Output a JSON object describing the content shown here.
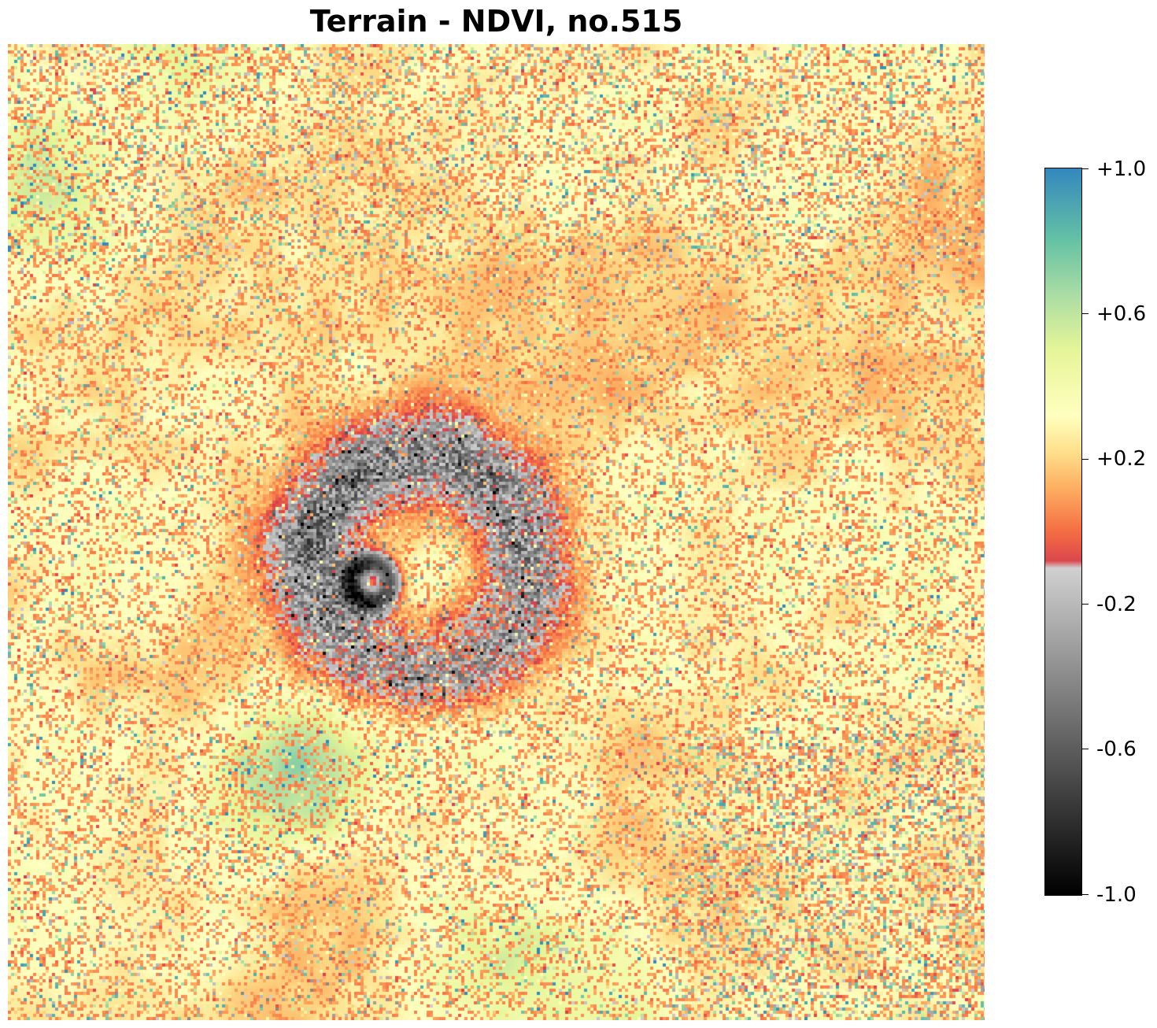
{
  "title": "Terrain - NDVI, no.515",
  "chart_data": {
    "type": "heatmap",
    "title": "Terrain - NDVI, no.515",
    "xlabel": "",
    "ylabel": "",
    "axes_visible": false,
    "grid": false,
    "description_value": "NDVI",
    "colorbar": {
      "position": "right",
      "vmin": -1.0,
      "vmax": 1.0,
      "ticks": [
        1.0,
        0.6,
        0.2,
        -0.2,
        -0.6,
        -1.0
      ],
      "tick_labels": [
        "+1.0",
        "+0.6",
        "+0.2",
        "-0.2",
        "-0.6",
        "-1.0"
      ],
      "colormap": {
        "below_-0.1": "grayscale from #000000 at -1.0 to #d0d0d0 at -0.1",
        "above_-0.1": "Spectral: #d53e4f at -0.1, #f46d43, #fdae61, #fee08b, #ffffbf at 0.3, #e6f598, #abdda4, #66c2a5, #3288bd at 1.0"
      }
    },
    "region_summary": {
      "dominant_range": [
        0.0,
        0.4
      ],
      "low_ndvi_ring_center_range": [
        -1.0,
        -0.3
      ],
      "high_ndvi_patches_range": [
        0.5,
        0.8
      ]
    }
  },
  "colors": {
    "neg_dark": "#000000",
    "neg_light": "#d0d0d0",
    "red": "#d53e4f",
    "orange": "#f46d43",
    "light_orange": "#fdae61",
    "pale_yellow": "#fee08b",
    "cream": "#ffffbf",
    "yellow_green": "#e6f598",
    "light_green": "#abdda4",
    "teal": "#66c2a5",
    "blue": "#3288bd"
  }
}
